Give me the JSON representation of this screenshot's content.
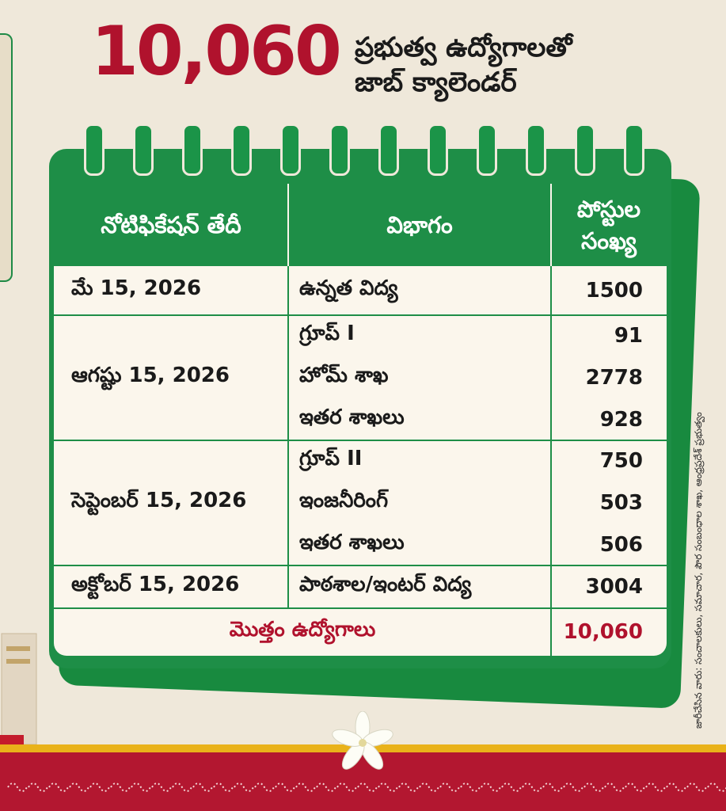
{
  "header": {
    "number": "10,060",
    "line1": "ప్రభుత్వ ఉద్యోగాలతో",
    "line2": "జాబ్ క్యాలెండర్"
  },
  "table": {
    "columns": [
      "నోటిఫికేషన్ తేదీ",
      "విభాగం",
      "పోస్టుల సంఖ్య"
    ],
    "column_lines": [
      [
        "నోటిఫికేషన్ తేదీ"
      ],
      [
        "విభాగం"
      ],
      [
        "పోస్టుల",
        "సంఖ్య"
      ]
    ],
    "groups": [
      {
        "date": "మే 15, 2026",
        "items": [
          {
            "dept": "ఉన్నత విద్య",
            "posts": "1500"
          }
        ]
      },
      {
        "date": "ఆగష్టు 15, 2026",
        "items": [
          {
            "dept": "గ్రూప్ I",
            "posts": "91"
          },
          {
            "dept": "హోమ్ శాఖ",
            "posts": "2778"
          },
          {
            "dept": "ఇతర శాఖలు",
            "posts": "928"
          }
        ]
      },
      {
        "date": "సెప్టెంబర్ 15, 2026",
        "items": [
          {
            "dept": "గ్రూప్ II",
            "posts": "750"
          },
          {
            "dept": "ఇంజనీరింగ్",
            "posts": "503"
          },
          {
            "dept": "ఇతర శాఖలు",
            "posts": "506"
          }
        ]
      },
      {
        "date": "అక్టోబర్ 15, 2026",
        "items": [
          {
            "dept": "పాఠశాల/ఇంటర్ విద్య",
            "posts": "3004"
          }
        ]
      }
    ],
    "total_label": "మొత్తం ఉద్యోగాలు",
    "total_value": "10,060"
  },
  "side_credit": "జారీచేసిన వారు: సంచాలకులు, సమాచార, పౌర సంబంధాల శాఖ, ఆంధ్రప్రదేశ్ ప్రభుత్వం",
  "colors": {
    "accent_green": "#1e8e47",
    "accent_red": "#b0122d",
    "gold": "#e9b21a",
    "paper": "#fbf6ec",
    "background": "#efe8da"
  }
}
